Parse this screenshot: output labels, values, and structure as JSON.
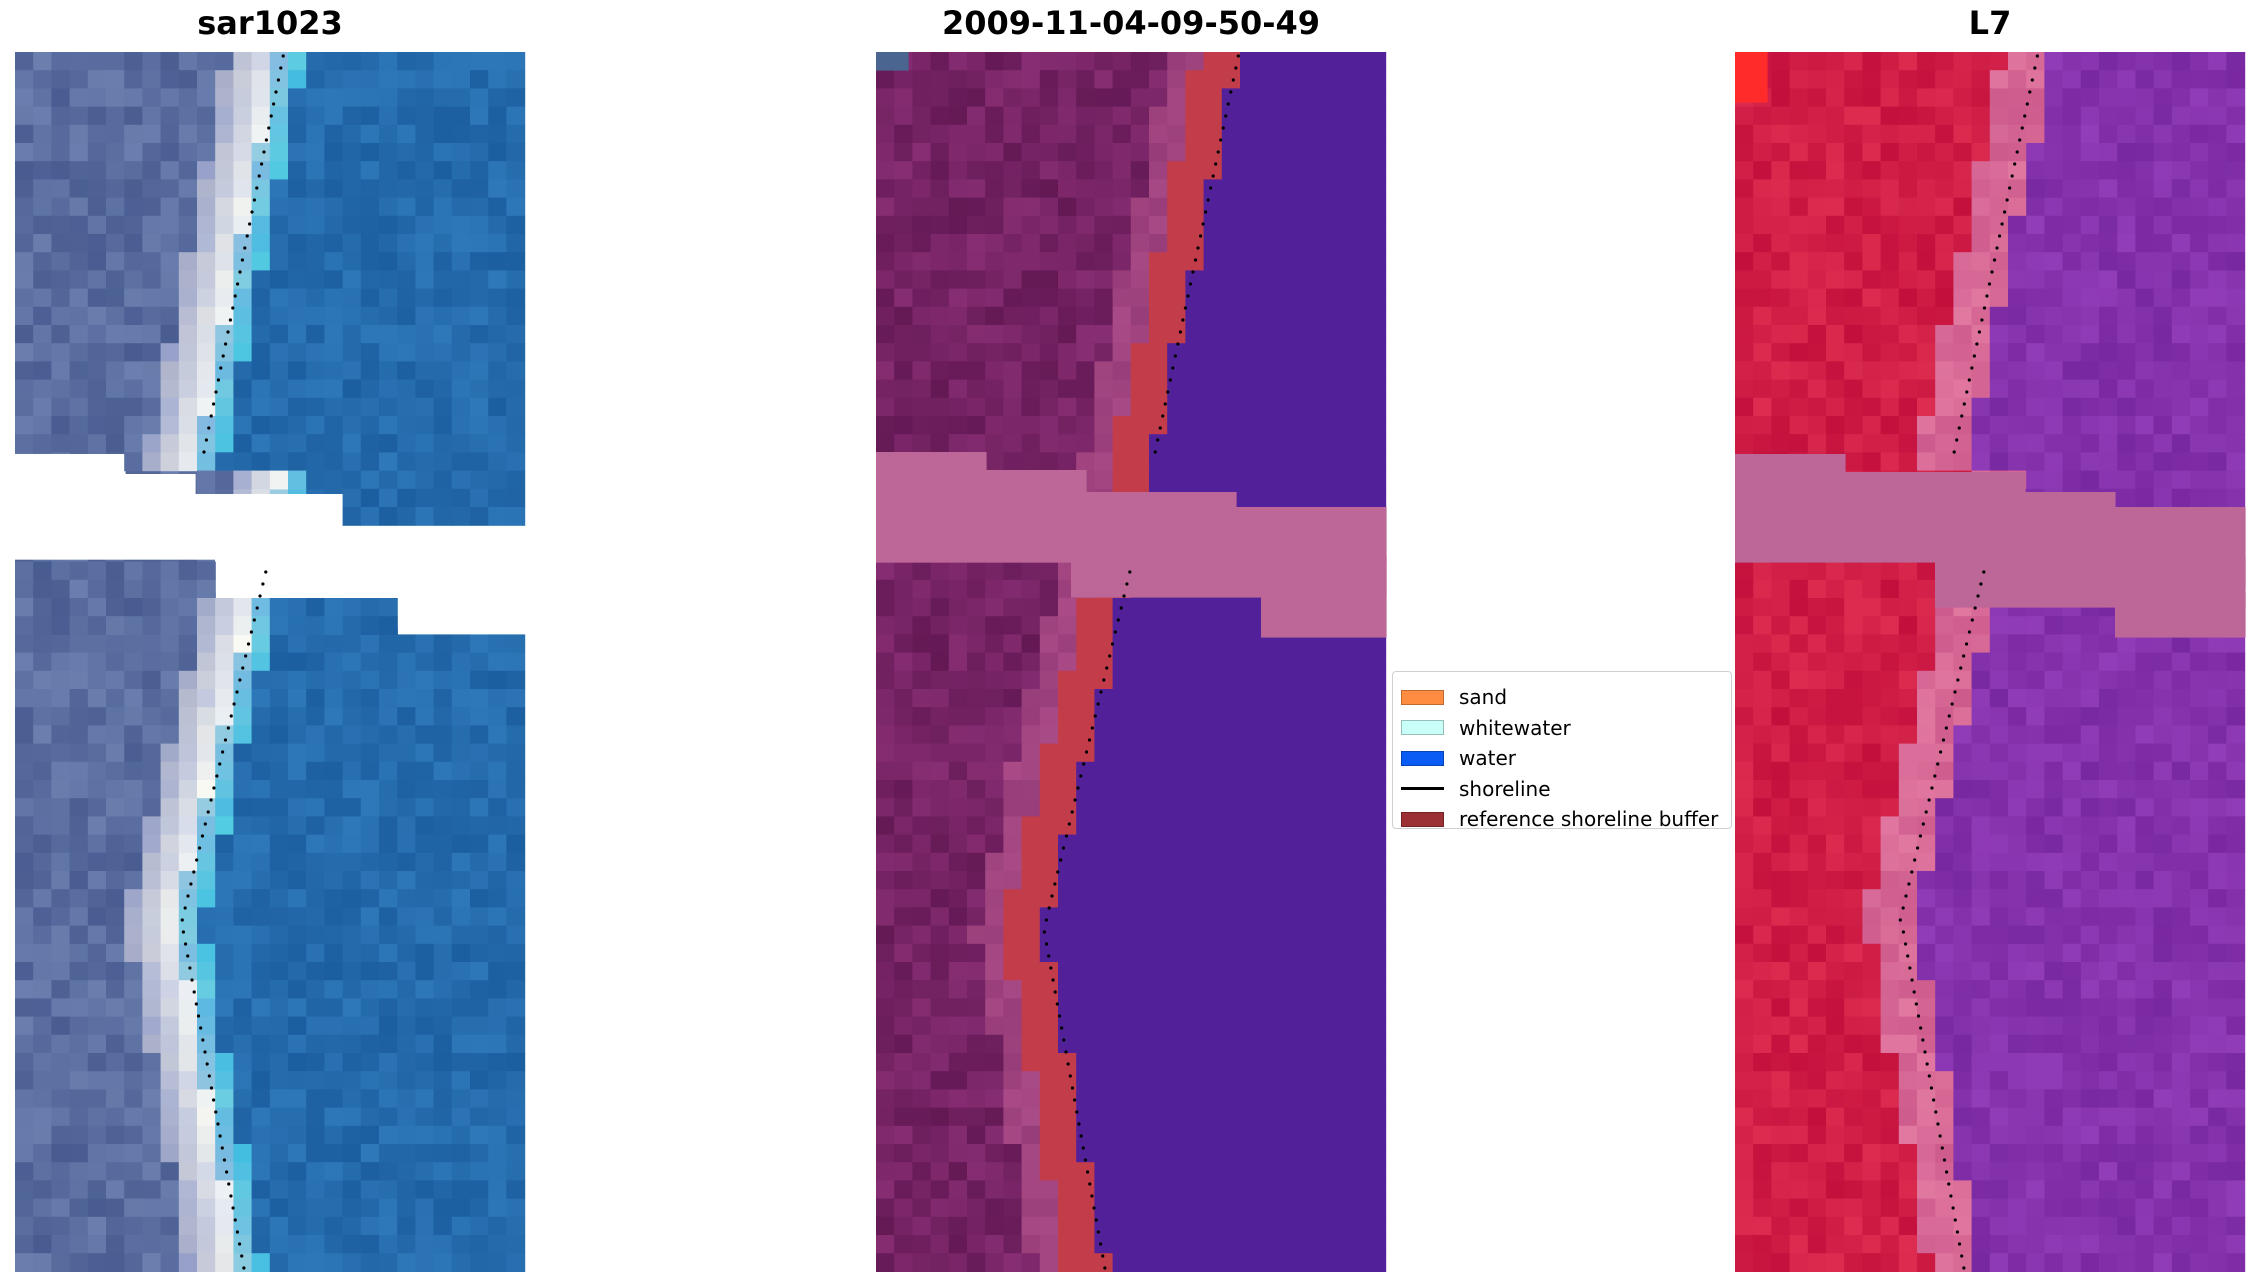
{
  "panels": [
    {
      "title": "sar1023",
      "scheme": "rgb"
    },
    {
      "title": "2009-11-04-09-50-49",
      "scheme": "class"
    },
    {
      "title": "L7",
      "scheme": "ndwi"
    }
  ],
  "legend": {
    "items": [
      {
        "label": "sand",
        "type": "patch",
        "color": "#ff8c40"
      },
      {
        "label": "whitewater",
        "type": "patch",
        "color": "#c8fff8"
      },
      {
        "label": "water",
        "type": "patch",
        "color": "#0a5cf5"
      },
      {
        "label": "shoreline",
        "type": "line",
        "color": "#000000"
      },
      {
        "label": "reference shoreline buffer",
        "type": "patch",
        "color": "#9b3035"
      }
    ]
  },
  "colors": {
    "nodata_class": "#bd6698",
    "nodata_ndwi": "#bd6698",
    "class_water": "#52219a",
    "class_buffer": "#c23c4a",
    "class_land": "#6b1a5c",
    "ndwi_land": "#cc1244",
    "ndwi_water": "#8a30a8",
    "shoreline_dots": "#000000"
  }
}
